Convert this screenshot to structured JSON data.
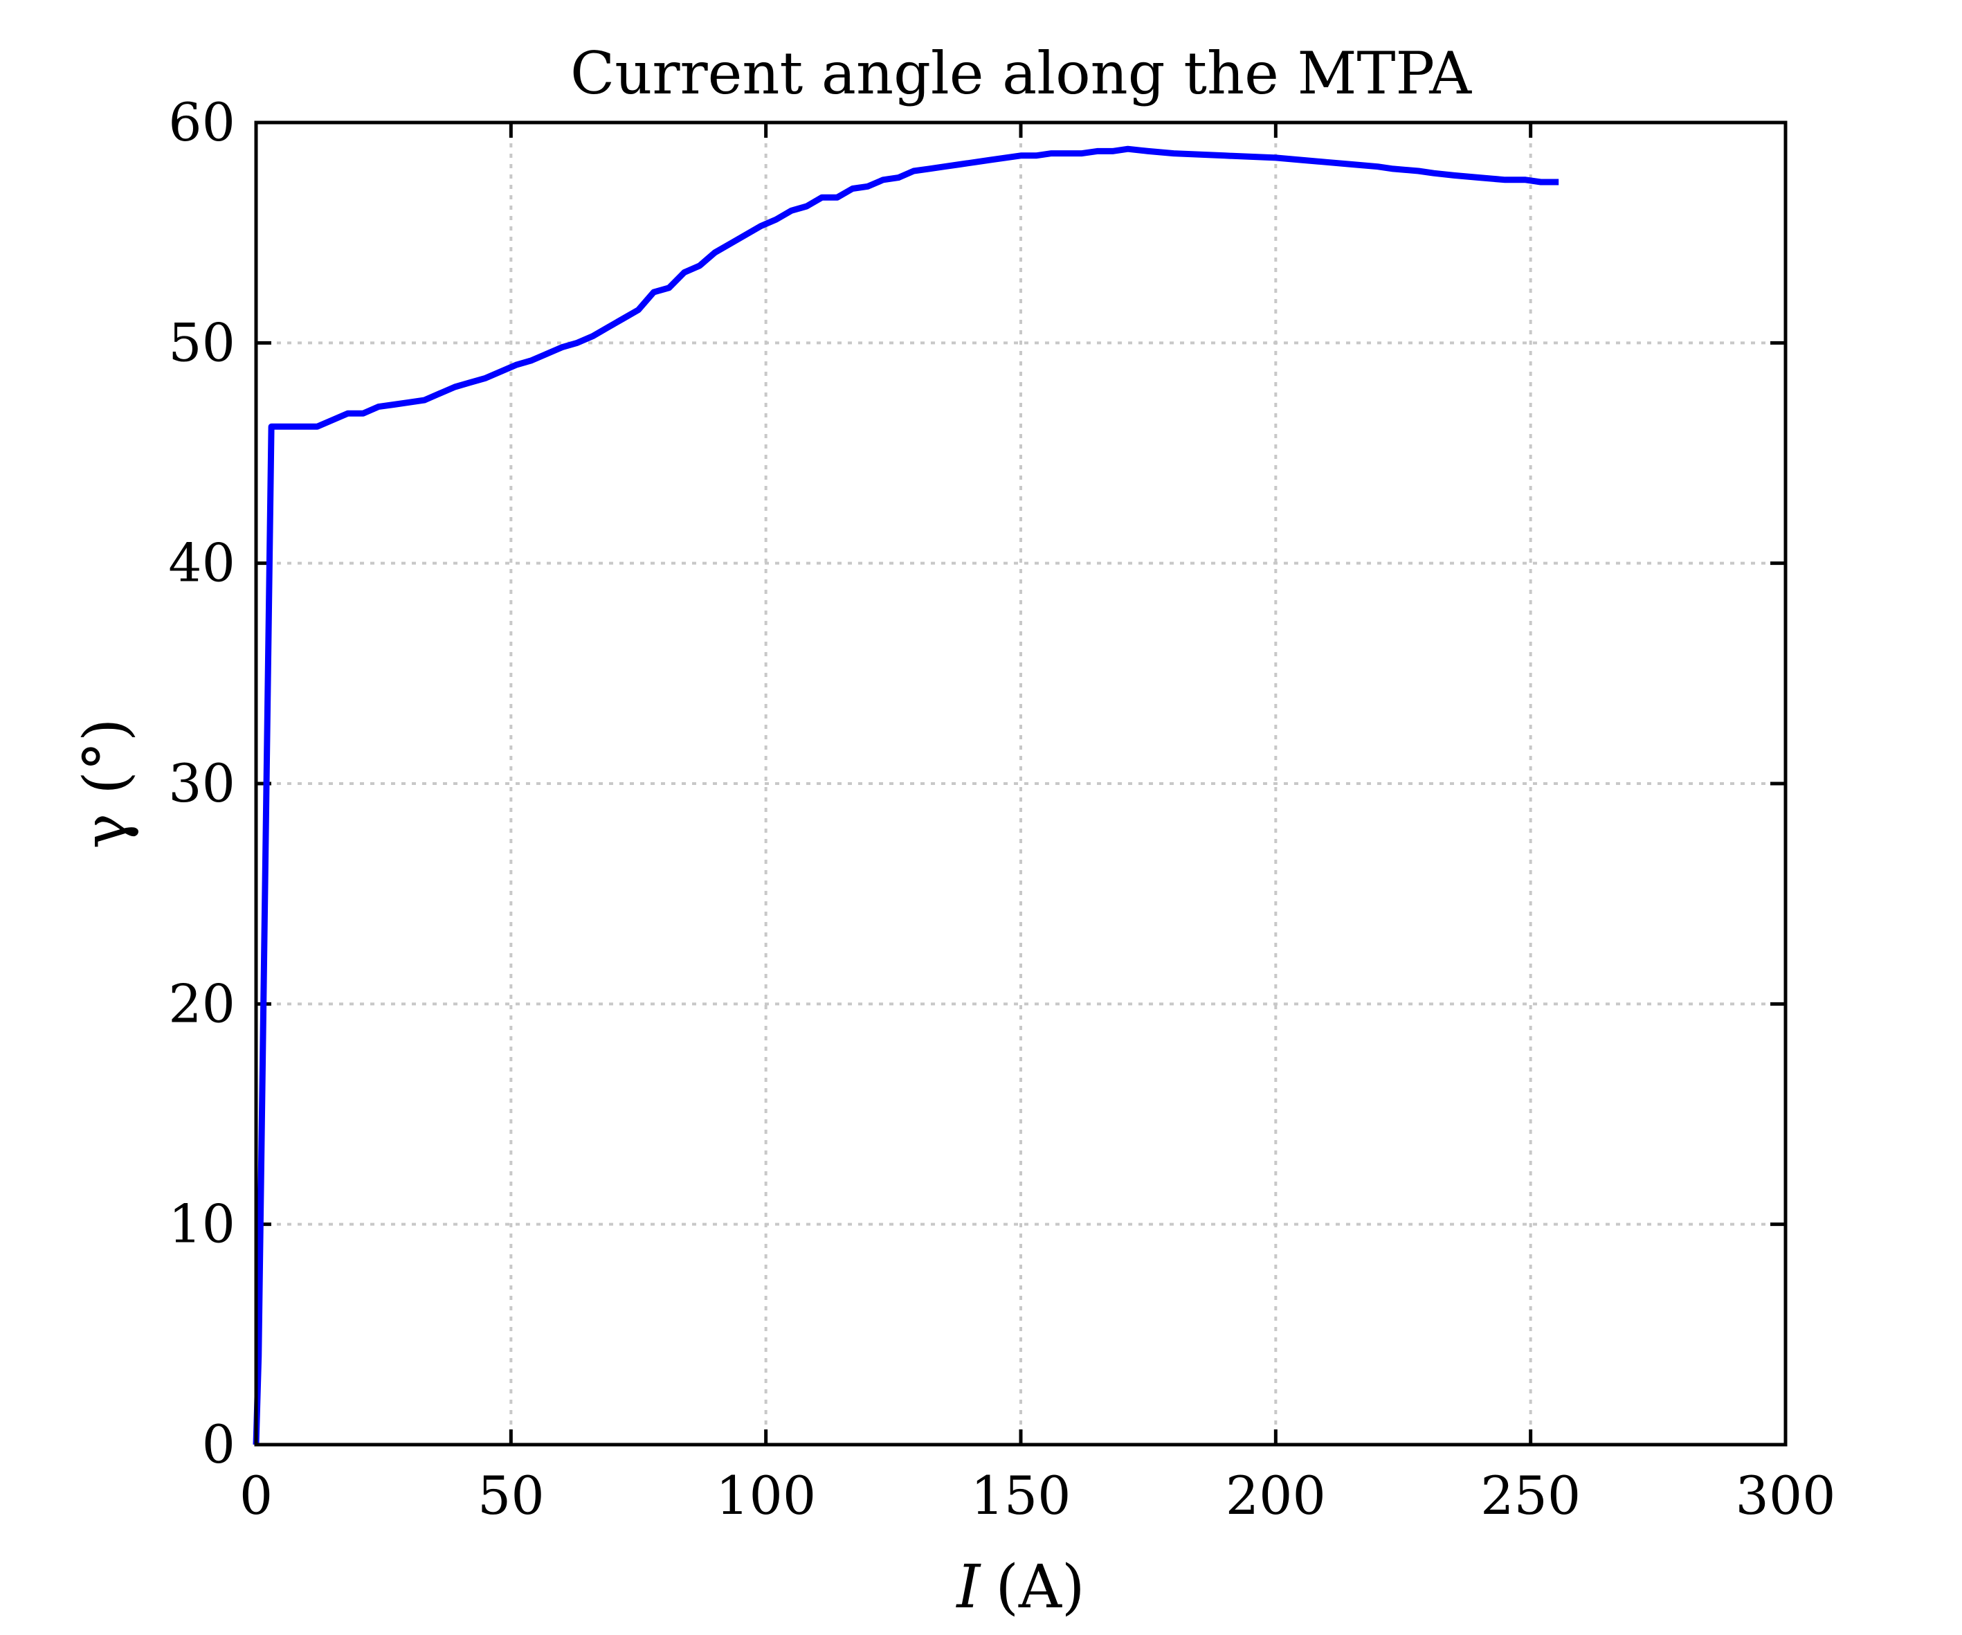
{
  "chart_data": {
    "type": "line",
    "title": "Current angle along the MTPA",
    "xlabel_var": "I",
    "xlabel_unit": "(A)",
    "ylabel": "γ (°)",
    "xlim": [
      0,
      300
    ],
    "ylim": [
      0,
      60
    ],
    "xticks": [
      0,
      50,
      100,
      150,
      200,
      250,
      300
    ],
    "yticks": [
      0,
      10,
      20,
      30,
      40,
      50,
      60
    ],
    "grid": true,
    "series": [
      {
        "color": "#0000ff",
        "x": [
          0,
          0.5,
          3,
          6,
          9,
          12,
          15,
          18,
          21,
          24,
          27,
          30,
          33,
          36,
          39,
          42,
          45,
          48,
          51,
          54,
          57,
          60,
          63,
          66,
          69,
          72,
          75,
          78,
          81,
          84,
          87,
          90,
          93,
          96,
          99,
          102,
          105,
          108,
          111,
          114,
          117,
          120,
          123,
          126,
          129,
          132,
          135,
          138,
          141,
          144,
          147,
          150,
          153,
          156,
          159,
          162,
          165,
          168,
          171,
          175,
          180,
          190,
          200,
          205,
          210,
          215,
          220,
          223,
          228,
          231,
          235,
          240,
          245,
          249,
          252,
          255.5
        ],
        "y": [
          0,
          4,
          46.2,
          46.2,
          46.2,
          46.2,
          46.5,
          46.8,
          46.8,
          47.1,
          47.2,
          47.3,
          47.4,
          47.7,
          48.0,
          48.2,
          48.4,
          48.7,
          49.0,
          49.2,
          49.5,
          49.8,
          50.0,
          50.3,
          50.7,
          51.1,
          51.5,
          52.3,
          52.5,
          53.2,
          53.5,
          54.1,
          54.5,
          54.9,
          55.3,
          55.6,
          56.0,
          56.2,
          56.6,
          56.6,
          57.0,
          57.1,
          57.4,
          57.5,
          57.8,
          57.9,
          58.0,
          58.1,
          58.2,
          58.3,
          58.4,
          58.5,
          58.5,
          58.6,
          58.6,
          58.6,
          58.7,
          58.7,
          58.8,
          58.7,
          58.6,
          58.5,
          58.4,
          58.3,
          58.2,
          58.1,
          58.0,
          57.9,
          57.8,
          57.7,
          57.6,
          57.5,
          57.4,
          57.4,
          57.3,
          57.3
        ]
      }
    ]
  }
}
